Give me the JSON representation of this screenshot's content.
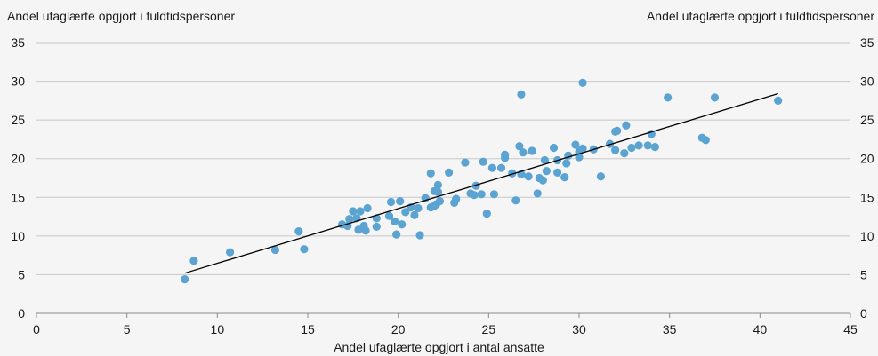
{
  "chart_data": {
    "type": "scatter",
    "title_left": "Andel ufaglærte opgjort i fuldtidspersoner",
    "title_right": "Andel ufaglærte opgjort i fuldtidspersoner",
    "xlabel": "Andel ufaglærte opgjort i antal ansatte",
    "xlim": [
      0,
      45
    ],
    "ylim": [
      0,
      35
    ],
    "xticks": [
      0,
      5,
      10,
      15,
      20,
      25,
      30,
      35,
      40,
      45
    ],
    "yticks": [
      0,
      5,
      10,
      15,
      20,
      25,
      30,
      35
    ],
    "grid": "horizontal",
    "colors": {
      "points": "#5ba3d0",
      "trendline": "#000000",
      "grid": "#c8c8c8"
    },
    "trendline": {
      "x": [
        8.2,
        41.0
      ],
      "y": [
        5.2,
        28.4
      ]
    },
    "points": [
      [
        8.2,
        4.4
      ],
      [
        8.7,
        6.8
      ],
      [
        10.7,
        7.9
      ],
      [
        13.2,
        8.2
      ],
      [
        14.5,
        10.6
      ],
      [
        14.8,
        8.3
      ],
      [
        16.9,
        11.5
      ],
      [
        17.2,
        11.3
      ],
      [
        17.3,
        12.2
      ],
      [
        17.5,
        13.2
      ],
      [
        17.7,
        12.3
      ],
      [
        17.8,
        10.8
      ],
      [
        17.9,
        13.2
      ],
      [
        18.1,
        11.3
      ],
      [
        18.2,
        10.7
      ],
      [
        18.3,
        13.6
      ],
      [
        18.8,
        12.3
      ],
      [
        18.8,
        11.2
      ],
      [
        19.5,
        12.6
      ],
      [
        19.6,
        14.4
      ],
      [
        19.8,
        11.9
      ],
      [
        19.9,
        10.2
      ],
      [
        20.1,
        14.5
      ],
      [
        20.2,
        11.5
      ],
      [
        20.4,
        13.1
      ],
      [
        20.7,
        13.7
      ],
      [
        20.9,
        12.7
      ],
      [
        21.1,
        13.6
      ],
      [
        21.2,
        10.1
      ],
      [
        21.5,
        14.9
      ],
      [
        21.8,
        13.7
      ],
      [
        21.8,
        18.1
      ],
      [
        22.0,
        15.8
      ],
      [
        22.0,
        13.9
      ],
      [
        22.1,
        14.1
      ],
      [
        22.2,
        16.6
      ],
      [
        22.2,
        15.7
      ],
      [
        22.3,
        14.5
      ],
      [
        22.8,
        18.2
      ],
      [
        23.1,
        14.3
      ],
      [
        23.2,
        14.8
      ],
      [
        23.7,
        19.5
      ],
      [
        24.0,
        15.5
      ],
      [
        24.2,
        15.3
      ],
      [
        24.3,
        16.5
      ],
      [
        24.6,
        15.4
      ],
      [
        24.7,
        19.6
      ],
      [
        24.9,
        12.9
      ],
      [
        25.2,
        18.8
      ],
      [
        25.3,
        15.4
      ],
      [
        25.7,
        18.8
      ],
      [
        25.9,
        20.1
      ],
      [
        25.9,
        20.5
      ],
      [
        26.3,
        18.1
      ],
      [
        26.5,
        14.6
      ],
      [
        26.7,
        21.6
      ],
      [
        26.8,
        18.0
      ],
      [
        26.8,
        28.3
      ],
      [
        26.9,
        20.8
      ],
      [
        27.2,
        17.7
      ],
      [
        27.4,
        21.0
      ],
      [
        27.7,
        15.5
      ],
      [
        27.8,
        17.5
      ],
      [
        28.0,
        17.2
      ],
      [
        28.1,
        19.8
      ],
      [
        28.2,
        18.4
      ],
      [
        28.6,
        21.4
      ],
      [
        28.8,
        18.2
      ],
      [
        28.8,
        19.8
      ],
      [
        29.2,
        17.6
      ],
      [
        29.3,
        19.4
      ],
      [
        29.4,
        20.4
      ],
      [
        29.8,
        21.8
      ],
      [
        30.0,
        20.2
      ],
      [
        30.0,
        20.9
      ],
      [
        30.2,
        21.3
      ],
      [
        30.2,
        29.8
      ],
      [
        30.8,
        21.2
      ],
      [
        31.2,
        17.7
      ],
      [
        31.7,
        21.9
      ],
      [
        32.0,
        23.5
      ],
      [
        32.0,
        21.1
      ],
      [
        32.1,
        23.6
      ],
      [
        32.5,
        20.7
      ],
      [
        32.6,
        24.3
      ],
      [
        32.9,
        21.4
      ],
      [
        33.3,
        21.7
      ],
      [
        33.8,
        21.7
      ],
      [
        34.0,
        23.2
      ],
      [
        34.2,
        21.5
      ],
      [
        34.9,
        27.9
      ],
      [
        36.8,
        22.7
      ],
      [
        37.0,
        22.4
      ],
      [
        37.5,
        27.9
      ],
      [
        41.0,
        27.5
      ]
    ]
  }
}
